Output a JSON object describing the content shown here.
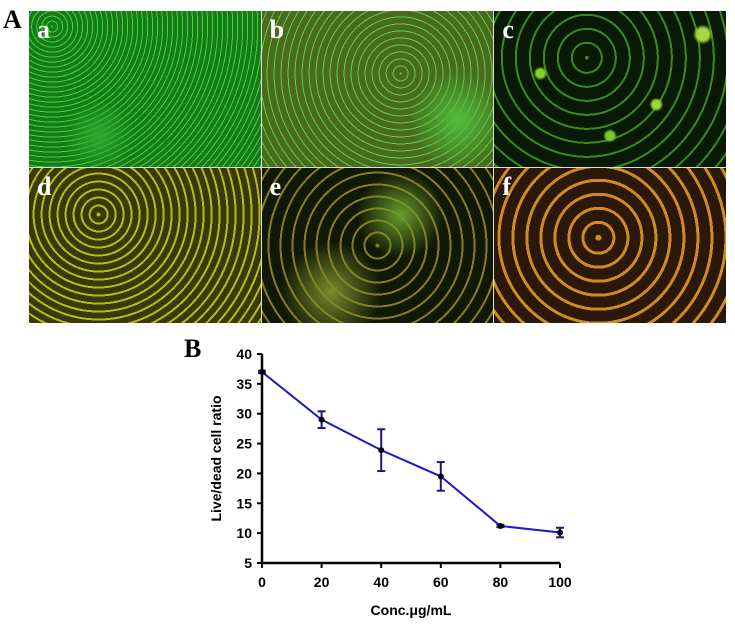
{
  "figure": {
    "label_A": "A",
    "label_B": "B",
    "panels": [
      {
        "label": "a"
      },
      {
        "label": "b"
      },
      {
        "label": "c"
      },
      {
        "label": "d"
      },
      {
        "label": "e"
      },
      {
        "label": "f"
      }
    ]
  },
  "chart_data": {
    "type": "line",
    "title": "",
    "xlabel": "Conc.μg/mL",
    "ylabel": "Live/dead cell ratio",
    "x": [
      0,
      20,
      40,
      60,
      80,
      100
    ],
    "x_ticks": [
      "0",
      "20",
      "40",
      "60",
      "80",
      "100"
    ],
    "y_ticks": [
      "5",
      "10",
      "15",
      "20",
      "25",
      "30",
      "35",
      "40"
    ],
    "xlim": [
      0,
      100
    ],
    "ylim": [
      5,
      40
    ],
    "grid": false,
    "legend": null,
    "series": [
      {
        "name": "Live/dead cell ratio",
        "color": "#1a1acc",
        "values": [
          37.0,
          29.0,
          23.9,
          19.5,
          11.2,
          10.1
        ],
        "error": [
          0.2,
          1.4,
          3.5,
          2.4,
          0.2,
          0.8
        ]
      }
    ]
  }
}
